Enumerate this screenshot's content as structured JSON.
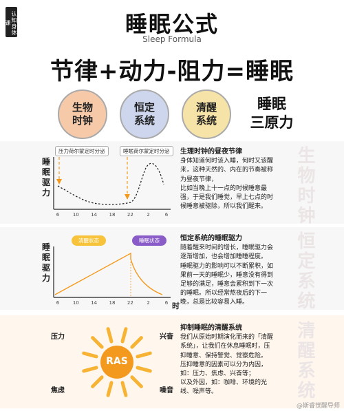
{
  "brand": {
    "label": "认知身体课"
  },
  "header": {
    "title": "睡眠公式",
    "subtitle": "Sleep Formula",
    "formula": "节律+动力-阻力=睡眠"
  },
  "principles": {
    "circle1": {
      "line1": "生物",
      "line2": "时钟"
    },
    "circle2": {
      "line1": "恒定",
      "line2": "系统"
    },
    "circle3": {
      "line1": "清醒",
      "line2": "系统"
    },
    "summary": {
      "line1": "睡眠",
      "line2": "三原力"
    }
  },
  "chart1": {
    "ylabel": [
      "睡",
      "眠",
      "驱",
      "力"
    ],
    "tag_left": "压力荷尔蒙定时分泌",
    "tag_right": "睡眠荷尔蒙定时分泌",
    "ticks": [
      "6",
      "10",
      "14",
      "18",
      "22",
      "2",
      "6"
    ],
    "watermark": "生物时钟",
    "desc_title": "生理时钟的昼夜节律",
    "desc_lines": [
      "身体知道何时该入睡，何时又该醒",
      "来，这种天然的、内在的节奏被称",
      "为昼夜节律，",
      "比如当晚上十一点的时候睡意最",
      "强，于是我们睡觉，早上七点的时",
      "候睡意被驱除，所以我们醒来。"
    ]
  },
  "chart2": {
    "ylabel": [
      "睡",
      "眠",
      "驱",
      "力"
    ],
    "xlabel": "时",
    "pill_left": "清醒状态",
    "pill_right": "睡眠状态",
    "ticks": [
      "6",
      "10",
      "14",
      "18",
      "22",
      "2",
      "6"
    ],
    "watermark": "恒定系统",
    "desc_title": "恒定系统的睡眠驱力",
    "desc_lines": [
      "随着醒来时间的增长，睡眠驱力会",
      "逐渐增加，也会增加睡睡程度。",
      "睡眠驱力的影响可以不断累积，如",
      "果前一天的睡眠少，睡意没有得到",
      "足够的满足，睡意会累积到下一次",
      "的睡眠。所以经常熬夜后的下一",
      "晚，总是比较容易入睡。"
    ]
  },
  "chart3": {
    "center": "RAS",
    "label_tl": "压力",
    "label_tr": "兴奋",
    "label_bl": "焦虑",
    "label_br": "噪音",
    "watermark": "清醒系统",
    "desc_title": "抑制睡眠的清醒系统",
    "desc_lines": [
      "我们从原始时期演化而来的「清醒",
      "系统」，让我们在休息睡眠时，压",
      "抑睡意、保持警觉、觉察危险。",
      "压抑睡意的因素可以分为内因，",
      "如：压力、焦虑、兴奋等；",
      "以及外因，如：咖啡、环境的光",
      "线、噪声等。"
    ]
  },
  "footer": {
    "credit": "@斯睿觉醒导师"
  },
  "colors": {
    "orange": "#f39a1e",
    "purple": "#8a5cc8",
    "ray": "#f6b334"
  }
}
